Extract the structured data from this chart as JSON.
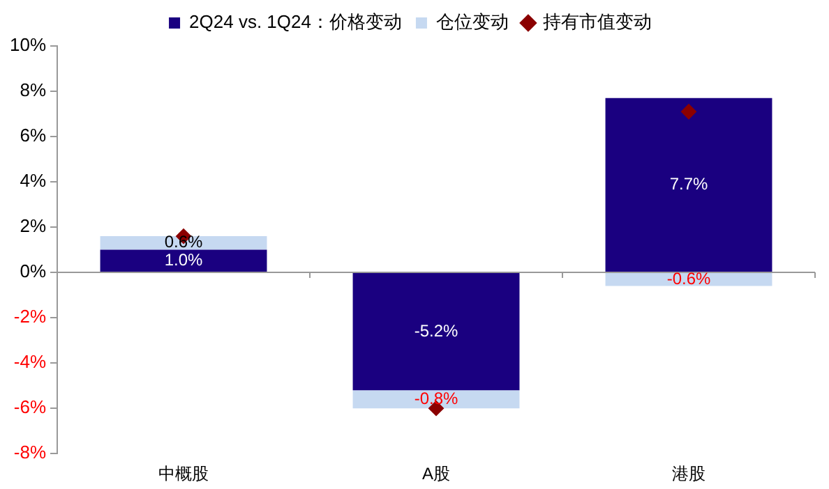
{
  "chart_data": {
    "type": "bar",
    "stacked": true,
    "categories": [
      "中概股",
      "A股",
      "港股"
    ],
    "series": [
      {
        "name": "2Q24 vs. 1Q24：价格变动",
        "color": "#1a0080",
        "values": [
          1.0,
          -5.2,
          7.7
        ],
        "value_labels": [
          "1.0%",
          "-5.2%",
          "7.7%"
        ]
      },
      {
        "name": "仓位变动",
        "color": "#c6d9f1",
        "values": [
          0.6,
          -0.8,
          -0.6
        ],
        "value_labels": [
          "0.6%",
          "-0.8%",
          "-0.6%"
        ]
      },
      {
        "name": "持有市值变动",
        "type": "scatter",
        "marker": "diamond",
        "color": "#8b0000",
        "x": [
          "中概股",
          "A股",
          "港股"
        ],
        "values": [
          1.6,
          -6.0,
          7.1
        ]
      }
    ],
    "ylim": [
      -8,
      10
    ],
    "yticks": [
      {
        "value": -8,
        "label": "-8%"
      },
      {
        "value": -6,
        "label": "-6%"
      },
      {
        "value": -4,
        "label": "-4%"
      },
      {
        "value": -2,
        "label": "-2%"
      },
      {
        "value": 0,
        "label": "0%"
      },
      {
        "value": 2,
        "label": "2%"
      },
      {
        "value": 4,
        "label": "4%"
      },
      {
        "value": 6,
        "label": "6%"
      },
      {
        "value": 8,
        "label": "8%"
      },
      {
        "value": 10,
        "label": "10%"
      }
    ],
    "legend": "top"
  }
}
